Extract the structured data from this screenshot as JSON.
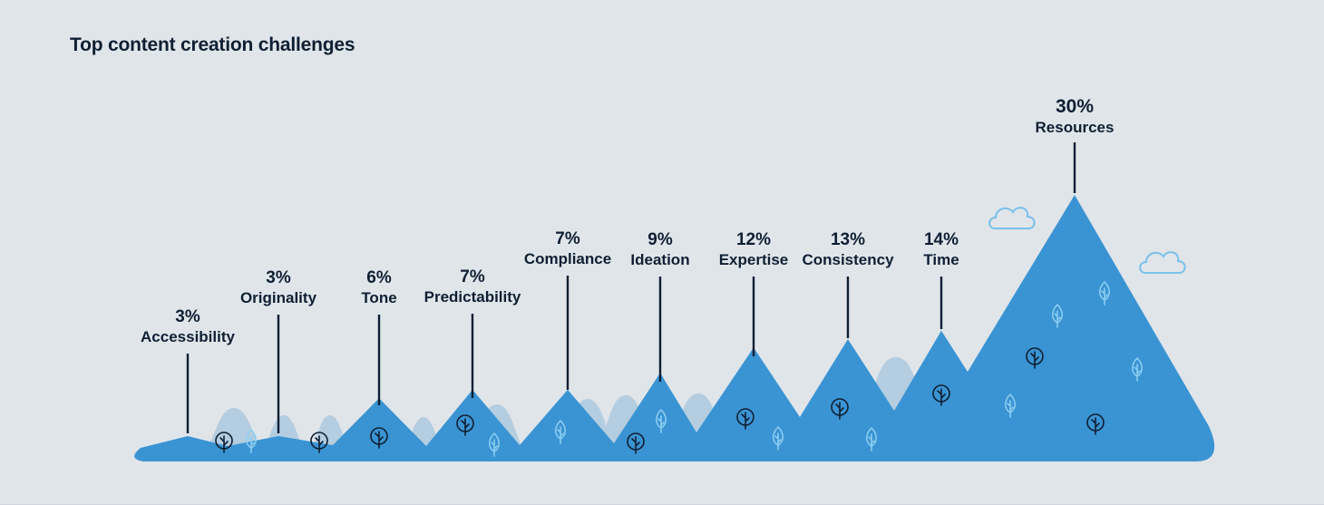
{
  "chart_data": {
    "type": "bar",
    "title": "Top content creation challenges",
    "categories": [
      "Accessibility",
      "Originality",
      "Tone",
      "Predictability",
      "Compliance",
      "Ideation",
      "Expertise",
      "Consistency",
      "Time",
      "Resources"
    ],
    "values": [
      3,
      3,
      6,
      7,
      7,
      9,
      12,
      13,
      14,
      30
    ],
    "value_labels": [
      "3%",
      "3%",
      "6%",
      "7%",
      "7%",
      "9%",
      "12%",
      "13%",
      "14%",
      "30%"
    ],
    "unit": "%",
    "legend": "none",
    "grid": false
  },
  "colors": {
    "background": "#e0e5ea",
    "mountain": "#3a94d3",
    "background_hills": "#b4cde0",
    "text": "#0f1f33",
    "cloud_stroke": "#79c1ea",
    "leaf_light": "#8fd0f3",
    "tree_dark": "#0f1f33"
  },
  "icons": [
    "tree-icon",
    "leaf-icon",
    "cloud-icon"
  ]
}
